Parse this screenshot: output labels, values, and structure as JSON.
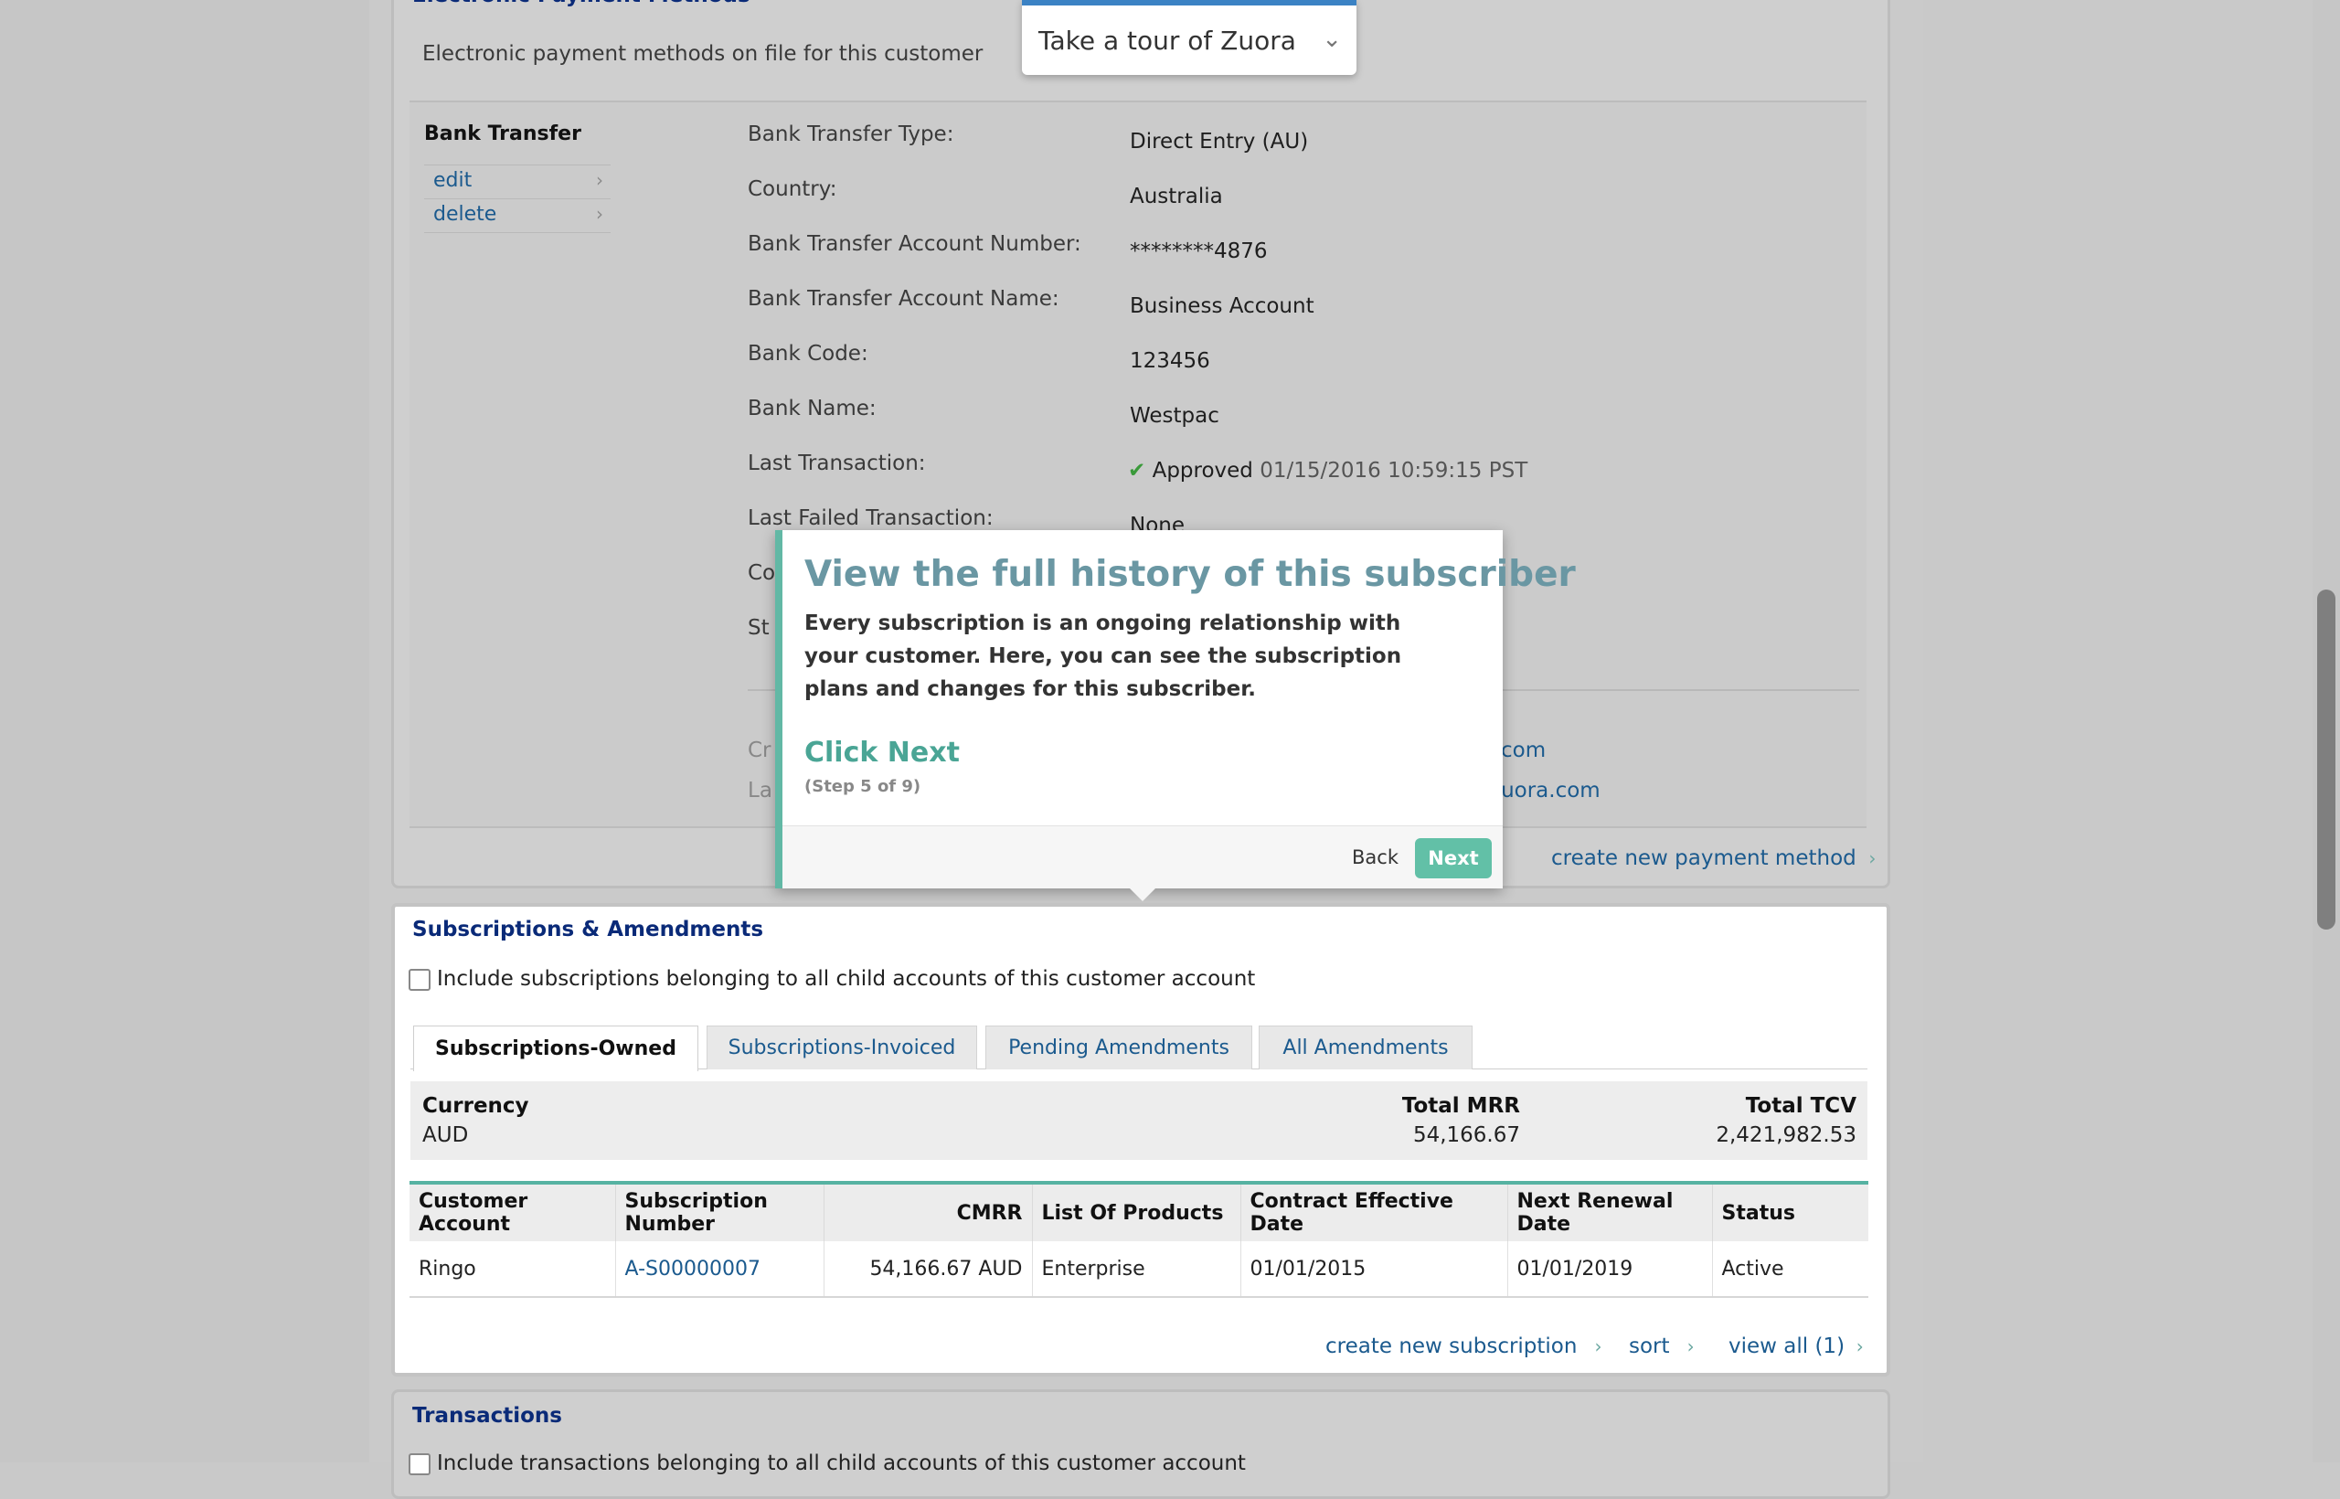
{
  "epm": {
    "title": "Electronic Payment Methods",
    "subtitle": "Electronic payment methods on file for this customer",
    "method_name": "Bank Transfer",
    "actions": [
      "edit",
      "delete"
    ],
    "fields": [
      {
        "label": "Bank Transfer Type:",
        "value": "Direct Entry (AU)"
      },
      {
        "label": "Country:",
        "value": "Australia"
      },
      {
        "label": "Bank Transfer Account Number:",
        "value": "********4876"
      },
      {
        "label": "Bank Transfer Account Name:",
        "value": "Business Account"
      },
      {
        "label": "Bank Code:",
        "value": "123456"
      },
      {
        "label": "Bank Name:",
        "value": "Westpac"
      },
      {
        "label": "Last Transaction:",
        "status": "Approved",
        "value": "01/15/2016 10:59:15 PST"
      },
      {
        "label": "Last Failed Transaction:",
        "value": "None"
      }
    ],
    "partial_labels": [
      "Co",
      "St",
      "Cr",
      "La"
    ],
    "partial_links": [
      "com",
      "zuora.com"
    ],
    "create_link": "create new payment method"
  },
  "tour": {
    "header": "Take a tour of Zuora",
    "popup_title": "View the full history of this subscriber",
    "popup_body": "Every subscription is an ongoing relationship with your customer. Here, you can see the subscription plans and changes for this subscriber.",
    "cta": "Click Next",
    "step": "(Step 5 of 9)",
    "back": "Back",
    "next": "Next"
  },
  "subs": {
    "title": "Subscriptions & Amendments",
    "include_label": "Include subscriptions belonging to all child accounts of this customer account",
    "tabs": [
      "Subscriptions-Owned",
      "Subscriptions-Invoiced",
      "Pending Amendments",
      "All Amendments"
    ],
    "summary": {
      "currency_label": "Currency",
      "currency": "AUD",
      "mrr_label": "Total MRR",
      "mrr": "54,166.67",
      "tcv_label": "Total TCV",
      "tcv": "2,421,982.53"
    },
    "columns": [
      "Customer Account",
      "Subscription Number",
      "CMRR",
      "List Of Products",
      "Contract Effective Date",
      "Next Renewal Date",
      "Status"
    ],
    "rows": [
      [
        "Ringo",
        "A-S00000007",
        "54,166.67 AUD",
        "Enterprise",
        "01/01/2015",
        "01/01/2019",
        "Active"
      ]
    ],
    "footer_links": [
      "create new subscription",
      "sort",
      "view all (1)"
    ]
  },
  "transactions": {
    "title": "Transactions",
    "include_label": "Include transactions belonging to all child accounts of this customer account"
  }
}
